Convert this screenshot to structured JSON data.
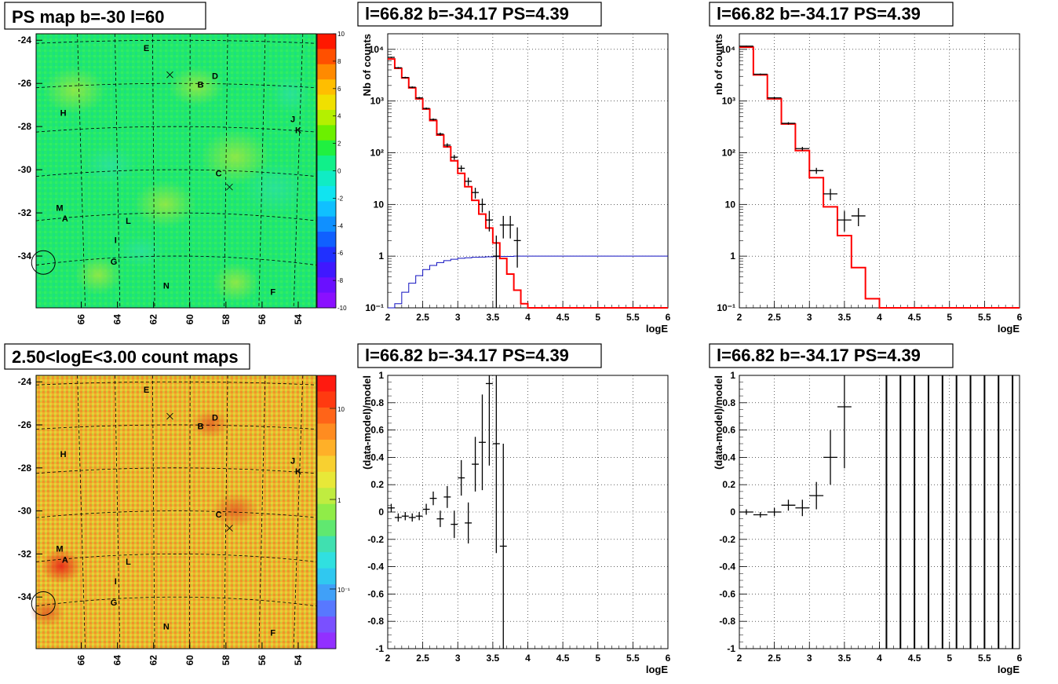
{
  "panels": [
    {
      "title": "PS map b=-30 l=60"
    },
    {
      "title": "l=66.82 b=-34.17 PS=4.39"
    },
    {
      "title": "l=66.82 b=-34.17 PS=4.39"
    },
    {
      "title": "2.50<logE<3.00 count maps"
    },
    {
      "title": "l=66.82 b=-34.17 PS=4.39"
    },
    {
      "title": "l=66.82 b=-34.17 PS=4.39"
    }
  ],
  "maps": {
    "y_ticks": [
      "-24",
      "-26",
      "-28",
      "-30",
      "-32",
      "-34"
    ],
    "x_ticks": [
      "66",
      "64",
      "62",
      "60",
      "58",
      "56",
      "54"
    ],
    "source_labels": [
      {
        "text": "E",
        "l": 62.4,
        "b": -24.5
      },
      {
        "text": "D",
        "l": 58.6,
        "b": -25.8
      },
      {
        "text": "B",
        "l": 59.4,
        "b": -26.2
      },
      {
        "text": "H",
        "l": 67.0,
        "b": -27.5
      },
      {
        "text": "J",
        "l": 54.3,
        "b": -27.8
      },
      {
        "text": "K",
        "l": 54.0,
        "b": -28.3
      },
      {
        "text": "C",
        "l": 58.4,
        "b": -30.3
      },
      {
        "text": "M",
        "l": 67.2,
        "b": -31.9
      },
      {
        "text": "A",
        "l": 66.9,
        "b": -32.4
      },
      {
        "text": "L",
        "l": 63.4,
        "b": -32.5
      },
      {
        "text": "I",
        "l": 64.1,
        "b": -33.4
      },
      {
        "text": "G",
        "l": 64.2,
        "b": -34.4
      },
      {
        "text": "N",
        "l": 61.3,
        "b": -35.5
      },
      {
        "text": "F",
        "l": 55.4,
        "b": -35.8
      }
    ],
    "crosses": [
      {
        "l": 61.1,
        "b": -25.6
      },
      {
        "l": 57.8,
        "b": -30.8
      }
    ],
    "circle": {
      "l": 68.1,
      "b": -34.3
    },
    "ps_palette": {
      "ticks": [
        "10",
        "8",
        "6",
        "4",
        "2",
        "0",
        "-2",
        "-4",
        "-6",
        "-8",
        "-10"
      ],
      "range": [
        -10,
        10
      ]
    },
    "count_palette": {
      "ticks": [
        "10",
        "1",
        "10⁻¹"
      ],
      "decades": [
        1,
        0,
        -1
      ]
    }
  },
  "chart_data": [
    {
      "type": "line",
      "panel": "top-middle",
      "xlabel": "logE",
      "ylabel": "Nb of counts",
      "xlim": [
        2,
        6
      ],
      "ylim": [
        0.1,
        20000
      ],
      "yscale": "log",
      "x_ticks": [
        "2",
        "2.5",
        "3",
        "3.5",
        "4",
        "4.5",
        "5",
        "5.5",
        "6"
      ],
      "y_ticks": [
        {
          "v": 0.1,
          "t": "10⁻¹"
        },
        {
          "v": 1,
          "t": "1"
        },
        {
          "v": 10,
          "t": "10"
        },
        {
          "v": 100,
          "t": "10²"
        },
        {
          "v": 1000,
          "t": "10³"
        },
        {
          "v": 10000,
          "t": "10⁴"
        }
      ],
      "model_bin_edges": [
        2.0,
        2.1,
        2.2,
        2.3,
        2.4,
        2.5,
        2.6,
        2.7,
        2.8,
        2.9,
        3.0,
        3.1,
        3.2,
        3.3,
        3.4,
        3.5,
        3.6,
        3.7,
        3.8,
        3.9,
        4.0,
        4.1,
        4.2,
        6.0
      ],
      "model_values": [
        6500,
        4300,
        2800,
        1800,
        1100,
        700,
        420,
        220,
        130,
        70,
        40,
        22,
        12,
        6.5,
        3.5,
        1.8,
        0.9,
        0.45,
        0.22,
        0.12,
        0.1,
        0.1,
        0.1
      ],
      "acceptance_bin_edges": [
        2.0,
        2.1,
        2.2,
        2.3,
        2.4,
        2.5,
        2.6,
        2.7,
        2.8,
        2.9,
        3.0,
        3.1,
        3.2,
        3.3,
        3.4,
        3.5,
        3.6,
        3.7,
        3.8,
        6.0
      ],
      "acceptance_values": [
        0.1,
        0.12,
        0.2,
        0.3,
        0.42,
        0.55,
        0.66,
        0.75,
        0.82,
        0.87,
        0.91,
        0.93,
        0.95,
        0.96,
        0.97,
        0.98,
        0.99,
        0.99,
        1.0
      ],
      "data_points": [
        {
          "x": 2.05,
          "y": 7000,
          "ylo": 6800,
          "yhi": 7200
        },
        {
          "x": 2.15,
          "y": 4400,
          "ylo": 4250,
          "yhi": 4550
        },
        {
          "x": 2.25,
          "y": 2850,
          "ylo": 2750,
          "yhi": 2950
        },
        {
          "x": 2.35,
          "y": 1850,
          "ylo": 1780,
          "yhi": 1920
        },
        {
          "x": 2.45,
          "y": 1150,
          "ylo": 1100,
          "yhi": 1200
        },
        {
          "x": 2.55,
          "y": 720,
          "ylo": 690,
          "yhi": 750
        },
        {
          "x": 2.65,
          "y": 440,
          "ylo": 420,
          "yhi": 460
        },
        {
          "x": 2.75,
          "y": 230,
          "ylo": 215,
          "yhi": 245
        },
        {
          "x": 2.85,
          "y": 140,
          "ylo": 128,
          "yhi": 152
        },
        {
          "x": 2.95,
          "y": 82,
          "ylo": 73,
          "yhi": 91
        },
        {
          "x": 3.05,
          "y": 50,
          "ylo": 43,
          "yhi": 57
        },
        {
          "x": 3.15,
          "y": 28,
          "ylo": 23,
          "yhi": 33
        },
        {
          "x": 3.25,
          "y": 17,
          "ylo": 13,
          "yhi": 21
        },
        {
          "x": 3.35,
          "y": 10,
          "ylo": 7,
          "yhi": 13
        },
        {
          "x": 3.45,
          "y": 5,
          "ylo": 3,
          "yhi": 7.5
        },
        {
          "x": 3.55,
          "y": 1,
          "ylo": 0.1,
          "yhi": 2.5
        },
        {
          "x": 3.65,
          "y": 4,
          "ylo": 2.2,
          "yhi": 6
        },
        {
          "x": 3.75,
          "y": 4,
          "ylo": 2.2,
          "yhi": 6
        },
        {
          "x": 3.85,
          "y": 2,
          "ylo": 0.6,
          "yhi": 3.6
        }
      ]
    },
    {
      "type": "line",
      "panel": "top-right",
      "xlabel": "logE",
      "ylabel": "nb of counts",
      "xlim": [
        2,
        6
      ],
      "ylim": [
        0.1,
        20000
      ],
      "yscale": "log",
      "x_ticks": [
        "2",
        "2.5",
        "3",
        "3.5",
        "4",
        "4.5",
        "5",
        "5.5",
        "6"
      ],
      "y_ticks": [
        {
          "v": 0.1,
          "t": "10⁻¹"
        },
        {
          "v": 1,
          "t": "1"
        },
        {
          "v": 10,
          "t": "10"
        },
        {
          "v": 100,
          "t": "10²"
        },
        {
          "v": 1000,
          "t": "10³"
        },
        {
          "v": 10000,
          "t": "10⁴"
        }
      ],
      "model_bin_edges": [
        2.0,
        2.2,
        2.4,
        2.6,
        2.8,
        3.0,
        3.2,
        3.4,
        3.6,
        3.8,
        4.0,
        4.2,
        6.0
      ],
      "model_values": [
        11000,
        3200,
        1100,
        360,
        110,
        33,
        9,
        2.5,
        0.6,
        0.15,
        0.1,
        0.1
      ],
      "data_points": [
        {
          "x": 2.1,
          "y": 11500,
          "ylo": 11200,
          "yhi": 11800
        },
        {
          "x": 2.3,
          "y": 3300,
          "ylo": 3200,
          "yhi": 3400
        },
        {
          "x": 2.5,
          "y": 1150,
          "ylo": 1100,
          "yhi": 1200
        },
        {
          "x": 2.7,
          "y": 370,
          "ylo": 350,
          "yhi": 390
        },
        {
          "x": 2.9,
          "y": 120,
          "ylo": 110,
          "yhi": 130
        },
        {
          "x": 3.1,
          "y": 45,
          "ylo": 39,
          "yhi": 51
        },
        {
          "x": 3.3,
          "y": 16,
          "ylo": 12,
          "yhi": 20
        },
        {
          "x": 3.5,
          "y": 5,
          "ylo": 3,
          "yhi": 7.5
        },
        {
          "x": 3.7,
          "y": 6,
          "ylo": 3.8,
          "yhi": 8.5
        }
      ]
    },
    {
      "type": "scatter",
      "panel": "bottom-middle",
      "xlabel": "logE",
      "ylabel": "(data-model)/model",
      "xlim": [
        2,
        6
      ],
      "ylim": [
        -1,
        1
      ],
      "x_ticks": [
        "2",
        "2.5",
        "3",
        "3.5",
        "4",
        "4.5",
        "5",
        "5.5",
        "6"
      ],
      "y_ticks": [
        "-1",
        "-0.8",
        "-0.6",
        "-0.4",
        "-0.2",
        "0",
        "0.2",
        "0.4",
        "0.6",
        "0.8",
        "1"
      ],
      "points": [
        {
          "x": 2.05,
          "y": 0.03,
          "err": 0.03
        },
        {
          "x": 2.15,
          "y": -0.04,
          "err": 0.03
        },
        {
          "x": 2.25,
          "y": -0.03,
          "err": 0.03
        },
        {
          "x": 2.35,
          "y": -0.04,
          "err": 0.03
        },
        {
          "x": 2.45,
          "y": -0.03,
          "err": 0.03
        },
        {
          "x": 2.55,
          "y": 0.02,
          "err": 0.04
        },
        {
          "x": 2.65,
          "y": 0.1,
          "err": 0.05
        },
        {
          "x": 2.75,
          "y": -0.05,
          "err": 0.06
        },
        {
          "x": 2.85,
          "y": 0.11,
          "err": 0.08
        },
        {
          "x": 2.95,
          "y": -0.09,
          "err": 0.1
        },
        {
          "x": 3.05,
          "y": 0.25,
          "err": 0.13
        },
        {
          "x": 3.15,
          "y": -0.08,
          "err": 0.15
        },
        {
          "x": 3.25,
          "y": 0.35,
          "err": 0.2
        },
        {
          "x": 3.35,
          "y": 0.51,
          "err": 0.35
        },
        {
          "x": 3.45,
          "y": 0.94,
          "err": 0.6
        },
        {
          "x": 3.55,
          "y": 0.5,
          "err": 0.8
        },
        {
          "x": 3.65,
          "y": -0.25,
          "err": 0.75
        }
      ]
    },
    {
      "type": "scatter",
      "panel": "bottom-right",
      "xlabel": "logE",
      "ylabel": "(data-model)/model",
      "xlim": [
        2,
        6
      ],
      "ylim": [
        -1,
        1
      ],
      "x_ticks": [
        "2",
        "2.5",
        "3",
        "3.5",
        "4",
        "4.5",
        "5",
        "5.5",
        "6"
      ],
      "y_ticks": [
        "-1",
        "-0.8",
        "-0.6",
        "-0.4",
        "-0.2",
        "0",
        "0.2",
        "0.4",
        "0.6",
        "0.8",
        "1"
      ],
      "points": [
        {
          "x": 2.1,
          "y": 0.0,
          "err": 0.02
        },
        {
          "x": 2.3,
          "y": -0.02,
          "err": 0.02
        },
        {
          "x": 2.5,
          "y": 0.0,
          "err": 0.03
        },
        {
          "x": 2.7,
          "y": 0.05,
          "err": 0.04
        },
        {
          "x": 2.9,
          "y": 0.03,
          "err": 0.06
        },
        {
          "x": 3.1,
          "y": 0.12,
          "err": 0.1
        },
        {
          "x": 3.3,
          "y": 0.4,
          "err": 0.2
        },
        {
          "x": 3.5,
          "y": 0.77,
          "err": 0.45
        }
      ],
      "full_range_bars_x": [
        4.1,
        4.3,
        4.5,
        4.7,
        4.9,
        5.1,
        5.3,
        5.5,
        5.7,
        5.9
      ]
    }
  ]
}
